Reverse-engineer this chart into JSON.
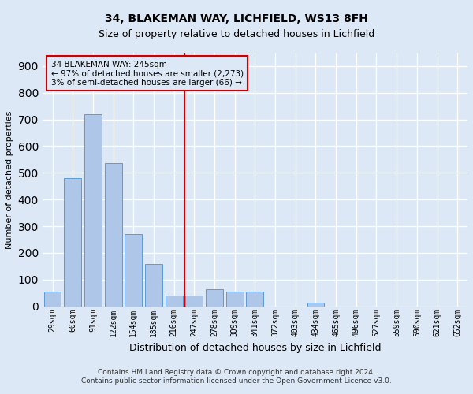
{
  "title1": "34, BLAKEMAN WAY, LICHFIELD, WS13 8FH",
  "title2": "Size of property relative to detached houses in Lichfield",
  "xlabel": "Distribution of detached houses by size in Lichfield",
  "ylabel": "Number of detached properties",
  "footer1": "Contains HM Land Registry data © Crown copyright and database right 2024.",
  "footer2": "Contains public sector information licensed under the Open Government Licence v3.0.",
  "annotation_line1": "34 BLAKEMAN WAY: 245sqm",
  "annotation_line2": "← 97% of detached houses are smaller (2,273)",
  "annotation_line3": "3% of semi-detached houses are larger (66) →",
  "bar_color": "#aec6e8",
  "bar_edge_color": "#5b9bd5",
  "vline_color": "#cc0000",
  "annotation_box_color": "#cc0000",
  "categories": [
    "29sqm",
    "60sqm",
    "91sqm",
    "122sqm",
    "154sqm",
    "185sqm",
    "216sqm",
    "247sqm",
    "278sqm",
    "309sqm",
    "341sqm",
    "372sqm",
    "403sqm",
    "434sqm",
    "465sqm",
    "496sqm",
    "527sqm",
    "559sqm",
    "590sqm",
    "621sqm",
    "652sqm"
  ],
  "values": [
    55,
    480,
    720,
    535,
    270,
    160,
    40,
    40,
    65,
    55,
    55,
    0,
    0,
    15,
    0,
    0,
    0,
    0,
    0,
    0,
    0
  ],
  "vline_x_index": 7,
  "ylim": [
    0,
    950
  ],
  "yticks": [
    0,
    100,
    200,
    300,
    400,
    500,
    600,
    700,
    800,
    900
  ],
  "background_color": "#dce8f5",
  "grid_color": "#ffffff",
  "title1_fontsize": 10,
  "title2_fontsize": 9,
  "xlabel_fontsize": 9,
  "ylabel_fontsize": 8,
  "tick_fontsize": 7,
  "footer_fontsize": 6.5
}
